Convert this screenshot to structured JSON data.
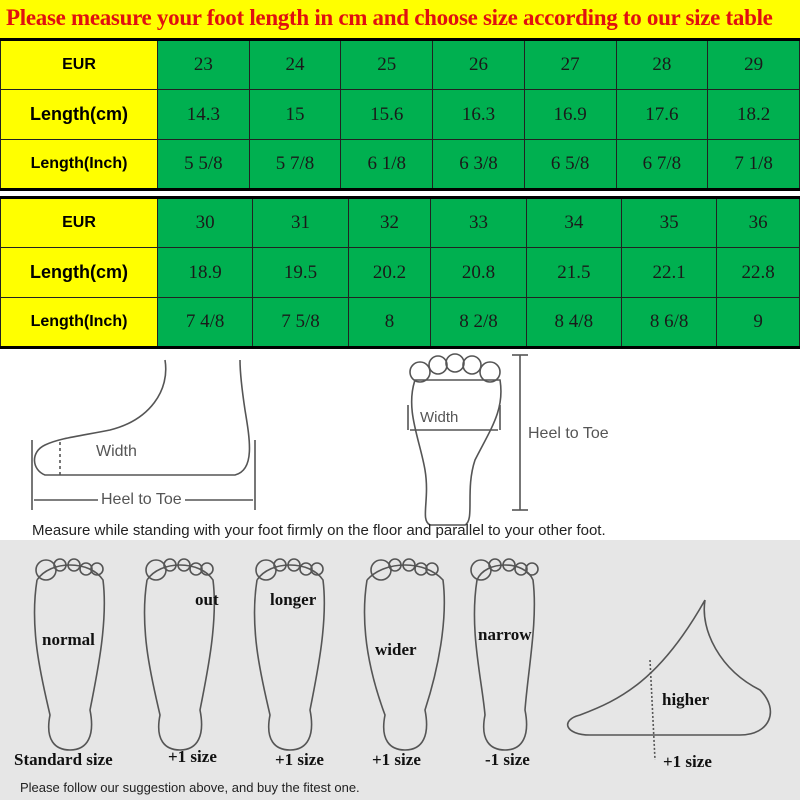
{
  "title": "Please measure your foot length in cm and choose size according to our size table",
  "tables": [
    {
      "rows": [
        {
          "label": "EUR",
          "values": [
            "23",
            "24",
            "25",
            "26",
            "27",
            "28",
            "29"
          ]
        },
        {
          "label": "Length(cm)",
          "values": [
            "14.3",
            "15",
            "15.6",
            "16.3",
            "16.9",
            "17.6",
            "18.2"
          ]
        },
        {
          "label": "Length(Inch)",
          "values": [
            "5 5/8",
            "5 7/8",
            "6 1/8",
            "6 3/8",
            "6 5/8",
            "6 7/8",
            "7 1/8"
          ]
        }
      ]
    },
    {
      "rows": [
        {
          "label": "EUR",
          "values": [
            "30",
            "31",
            "32",
            "33",
            "34",
            "35",
            "36"
          ]
        },
        {
          "label": "Length(cm)",
          "values": [
            "18.9",
            "19.5",
            "20.2",
            "20.8",
            "21.5",
            "22.1",
            "22.8"
          ]
        },
        {
          "label": "Length(Inch)",
          "values": [
            "7 4/8",
            "7 5/8",
            "8",
            "8 2/8",
            "8 4/8",
            "8 6/8",
            "9"
          ]
        }
      ]
    }
  ],
  "diagram": {
    "side_width": "Width",
    "side_heel": "Heel to Toe",
    "top_width": "Width",
    "top_heel": "Heel to Toe",
    "instruction": "Measure while standing with your foot firmly on the floor and parallel to your other foot."
  },
  "feet": [
    {
      "type": "normal",
      "advice": "Standard size"
    },
    {
      "type": "out",
      "advice": "+1 size"
    },
    {
      "type": "longer",
      "advice": "+1 size"
    },
    {
      "type": "wider",
      "advice": "+1 size"
    },
    {
      "type": "narrow",
      "advice": "-1 size"
    },
    {
      "type": "higher",
      "advice": "+1 size"
    }
  ],
  "footer": "Please follow our suggestion above, and buy the fitest one.",
  "colors": {
    "title_bg": "#ffff00",
    "title_text": "#e01010",
    "cells": "#00b050",
    "labels": "#ffff00"
  }
}
